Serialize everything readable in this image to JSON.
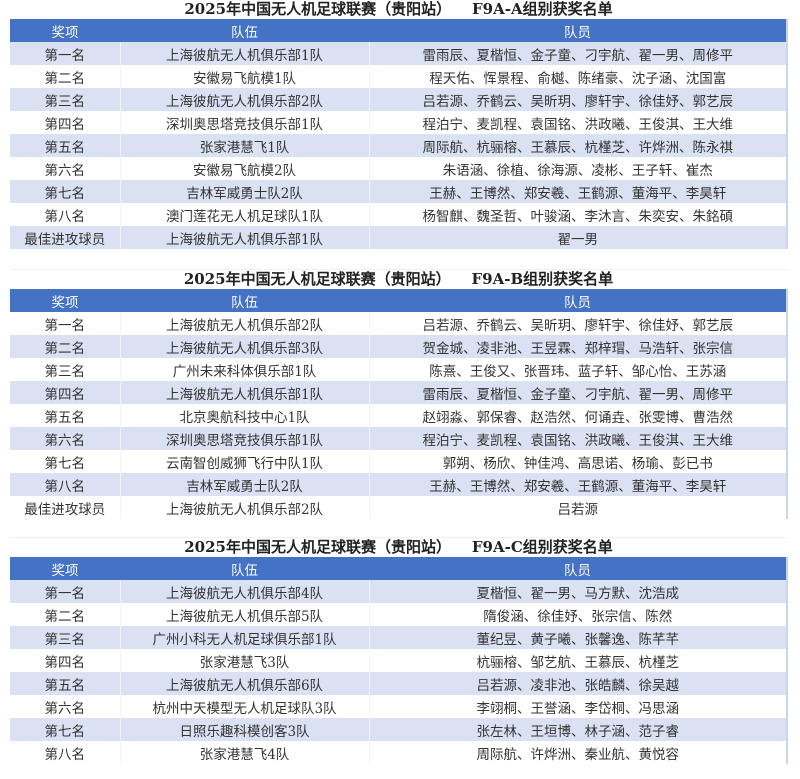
{
  "colors": {
    "header": "#4472C4",
    "stripe": "#D9E1F2"
  },
  "headers": {
    "award": "奖项",
    "team": "队伍",
    "members": "队员"
  },
  "tables": [
    {
      "title": "2025年中国无人机足球联赛（贵阳站）    F9A-A组别获奖名单",
      "first_row_shaded": true,
      "rows": [
        {
          "award": "第一名",
          "team": "上海彼航无人机俱乐部1队",
          "members": "雷雨辰、夏楷恒、金子童、刁宇航、翟一男、周修平"
        },
        {
          "award": "第二名",
          "team": "安徽易飞航模1队",
          "members": "程天佑、恽景程、俞樾、陈绪豪、沈子涵、沈国富"
        },
        {
          "award": "第三名",
          "team": "上海彼航无人机俱乐部2队",
          "members": "吕若源、乔鹤云、吴昕玥、廖轩宇、徐佳妤、郭艺辰"
        },
        {
          "award": "第四名",
          "team": "深圳奥思塔竞技俱乐部1队",
          "members": "程泊宁、麦凯程、袁国铭、洪政曦、王俊淇、王大维"
        },
        {
          "award": "第五名",
          "team": "张家港慧飞1队",
          "members": "周际航、杭骊榕、王慕辰、杭槿芝、许烨洲、陈永祺"
        },
        {
          "award": "第六名",
          "team": "安徽易飞航模2队",
          "members": "朱语涵、徐植、徐海源、凌彬、王子轩、崔杰"
        },
        {
          "award": "第七名",
          "team": "吉林军威勇士队2队",
          "members": "王赫、王博然、郑安羲、王鹤源、董海平、李昊轩"
        },
        {
          "award": "第八名",
          "team": "澳门莲花无人机足球队1队",
          "members": "杨智麒、魏圣哲、叶骏涵、李沐言、朱奕安、朱銘碩"
        },
        {
          "award": "最佳进攻球员",
          "team": "上海彼航无人机俱乐部1队",
          "members": "翟一男"
        }
      ]
    },
    {
      "title": "2025年中国无人机足球联赛（贵阳站）    F9A-B组别获奖名单",
      "first_row_shaded": false,
      "rows": [
        {
          "award": "第一名",
          "team": "上海彼航无人机俱乐部2队",
          "members": "吕若源、乔鹤云、吴昕玥、廖轩宇、徐佳妤、郭艺辰"
        },
        {
          "award": "第二名",
          "team": "上海彼航无人机俱乐部3队",
          "members": "贺金城、凌非池、王昱霖、郑梓瑁、马浩轩、张宗信"
        },
        {
          "award": "第三名",
          "team": "广州未来科体俱乐部1队",
          "members": "陈熹、王俊又、张晋玮、蓝子轩、邹心怡、王苏涵"
        },
        {
          "award": "第四名",
          "team": "上海彼航无人机俱乐部1队",
          "members": "雷雨辰、夏楷恒、金子童、刁宇航、翟一男、周修平"
        },
        {
          "award": "第五名",
          "team": "北京奥航科技中心1队",
          "members": "赵翊淼、郭保睿、赵浩然、何诵垚、张雯博、曹浩然"
        },
        {
          "award": "第六名",
          "team": "深圳奥思塔竞技俱乐部1队",
          "members": "程泊宁、麦凯程、袁国铭、洪政曦、王俊淇、王大维"
        },
        {
          "award": "第七名",
          "team": "云南智创威狮飞行中队1队",
          "members": "郭朔、杨欣、钟佳鸿、高思诺、杨瑜、彭已书"
        },
        {
          "award": "第八名",
          "team": "吉林军威勇士队2队",
          "members": "王赫、王博然、郑安羲、王鹤源、董海平、李昊轩"
        },
        {
          "award": "最佳进攻球员",
          "team": "上海彼航无人机俱乐部2队",
          "members": "吕若源"
        }
      ]
    },
    {
      "title": "2025年中国无人机足球联赛（贵阳站）    F9A-C组别获奖名单",
      "first_row_shaded": true,
      "rows": [
        {
          "award": "第一名",
          "team": "上海彼航无人机俱乐部4队",
          "members": "夏楷恒、翟一男、马方默、沈浩成"
        },
        {
          "award": "第二名",
          "team": "上海彼航无人机俱乐部5队",
          "members": "隋俊涵、徐佳妤、张宗信、陈然"
        },
        {
          "award": "第三名",
          "team": "广州小科无人机足球俱乐部1队",
          "members": "董纪昱、黄子曦、张馨逸、陈芊芊"
        },
        {
          "award": "第四名",
          "team": "张家港慧飞3队",
          "members": "杭骊榕、邹艺航、王慕辰、杭槿芝"
        },
        {
          "award": "第五名",
          "team": "上海彼航无人机俱乐部6队",
          "members": "吕若源、凌非池、张皓麟、徐吴越"
        },
        {
          "award": "第六名",
          "team": "杭州中天模型无人机足球队3队",
          "members": "李翊桐、王誉涵、李岱桐、冯思涵"
        },
        {
          "award": "第七名",
          "team": "日照乐趣科模创客3队",
          "members": "张左林、王垣博、林子涵、范子睿"
        },
        {
          "award": "第八名",
          "team": "张家港慧飞4队",
          "members": "周际航、许烨洲、秦业航、黄悦容"
        }
      ]
    }
  ]
}
